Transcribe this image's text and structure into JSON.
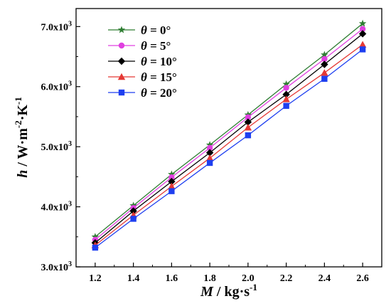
{
  "chart_data": {
    "type": "line",
    "xlabel_var": "M",
    "xlabel_unit": " / kg·s",
    "xlabel_exp": "-1",
    "ylabel_var": "h",
    "ylabel_unit": " / W·m",
    "ylabel_exp1": "-2",
    "ylabel_mid": "·K",
    "ylabel_exp2": "-1",
    "xlim": [
      1.1,
      2.7
    ],
    "ylim": [
      3000,
      7300
    ],
    "x_ticks": [
      1.2,
      1.4,
      1.6,
      1.8,
      2.0,
      2.2,
      2.4,
      2.6
    ],
    "x_tick_labels": [
      "1.2",
      "1.4",
      "1.6",
      "1.8",
      "2.0",
      "2.2",
      "2.4",
      "2.6"
    ],
    "y_ticks": [
      3000,
      4000,
      5000,
      6000,
      7000
    ],
    "y_tick_labels": [
      {
        "mant": "3.0x10",
        "exp": "3"
      },
      {
        "mant": "4.0x10",
        "exp": "3"
      },
      {
        "mant": "5.0x10",
        "exp": "3"
      },
      {
        "mant": "6.0x10",
        "exp": "3"
      },
      {
        "mant": "7.0x10",
        "exp": "3"
      }
    ],
    "legend_position": "top-left",
    "grid": false,
    "x": [
      1.2,
      1.4,
      1.6,
      1.8,
      2.0,
      2.2,
      2.4,
      2.6
    ],
    "series": [
      {
        "name": "θ = 0°",
        "var": "θ",
        "rest": " = 0°",
        "color": "#2e7d32",
        "marker": "star",
        "values": [
          3500,
          4020,
          4540,
          5030,
          5530,
          6040,
          6530,
          7050
        ]
      },
      {
        "name": "θ = 5°",
        "var": "θ",
        "rest": " = 5°",
        "color": "#e040e0",
        "marker": "circle",
        "values": [
          3450,
          3980,
          4490,
          4980,
          5490,
          5980,
          6460,
          6960
        ]
      },
      {
        "name": "θ = 10°",
        "var": "θ",
        "rest": " = 10°",
        "color": "#000000",
        "marker": "diamond",
        "values": [
          3400,
          3930,
          4420,
          4900,
          5410,
          5870,
          6370,
          6880
        ]
      },
      {
        "name": "θ = 15°",
        "var": "θ",
        "rest": " = 15°",
        "color": "#e53935",
        "marker": "triangle",
        "values": [
          3360,
          3860,
          4340,
          4810,
          5320,
          5790,
          6230,
          6700
        ]
      },
      {
        "name": "θ = 20°",
        "var": "θ",
        "rest": " = 20°",
        "color": "#1e3ff0",
        "marker": "square",
        "values": [
          3320,
          3800,
          4260,
          4730,
          5190,
          5680,
          6130,
          6620
        ]
      }
    ]
  }
}
